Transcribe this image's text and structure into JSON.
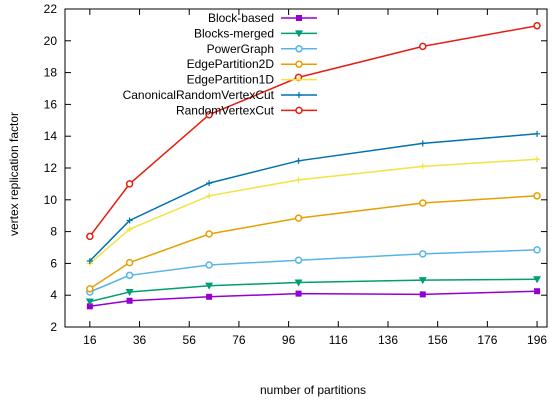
{
  "chart_data": {
    "type": "line",
    "title": "",
    "xlabel": "number of partitions",
    "ylabel": "vertex replication factor",
    "xlim": [
      6,
      200
    ],
    "ylim": [
      2,
      22
    ],
    "xticks": [
      16,
      36,
      56,
      76,
      96,
      116,
      136,
      156,
      176,
      196
    ],
    "yticks": [
      2,
      4,
      6,
      8,
      10,
      12,
      14,
      16,
      18,
      20,
      22
    ],
    "x": [
      16,
      32,
      64,
      100,
      150,
      196
    ],
    "grid": false,
    "legend_position": "top-center",
    "series": [
      {
        "name": "Block-based",
        "color": "#9400d3",
        "marker": "square",
        "values": [
          3.3,
          3.65,
          3.9,
          4.1,
          4.05,
          4.25
        ]
      },
      {
        "name": "Blocks-merged",
        "color": "#009e73",
        "marker": "triangle-down",
        "values": [
          3.6,
          4.2,
          4.6,
          4.8,
          4.95,
          5.0
        ]
      },
      {
        "name": "PowerGraph",
        "color": "#56b4e9",
        "marker": "circle",
        "values": [
          4.2,
          5.25,
          5.9,
          6.2,
          6.6,
          6.85
        ]
      },
      {
        "name": "EdgePartition2D",
        "color": "#e69f00",
        "marker": "circle",
        "values": [
          4.4,
          6.05,
          7.85,
          8.85,
          9.8,
          10.25
        ]
      },
      {
        "name": "EdgePartition1D",
        "color": "#f0e442",
        "marker": "tick",
        "values": [
          6.0,
          8.15,
          10.25,
          11.25,
          12.1,
          12.55
        ]
      },
      {
        "name": "CanonicalRandomVertexCut",
        "color": "#0072b2",
        "marker": "tick",
        "values": [
          6.15,
          8.7,
          11.05,
          12.45,
          13.55,
          14.15
        ]
      },
      {
        "name": "RandomVertexCut",
        "color": "#e51e10",
        "marker": "circle",
        "values": [
          7.7,
          11.0,
          15.35,
          17.7,
          19.65,
          20.95
        ]
      }
    ]
  }
}
